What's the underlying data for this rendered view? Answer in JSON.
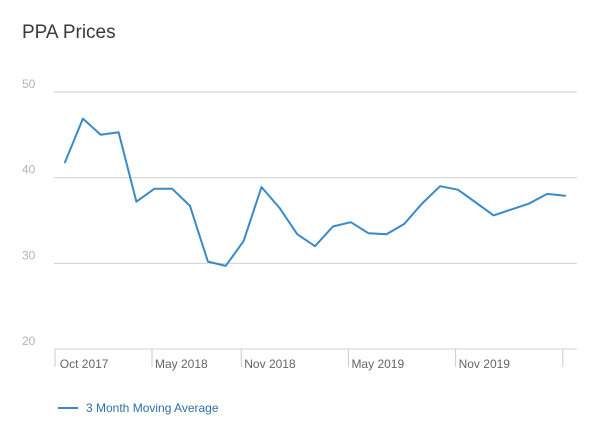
{
  "chart_data": {
    "type": "line",
    "title": "PPA Prices",
    "xlabel": "",
    "ylabel": "",
    "ylim": [
      20,
      50
    ],
    "yticks": [
      20,
      30,
      40,
      50
    ],
    "x_tick_labels": [
      "Oct 2017",
      "May 2018",
      "Nov 2018",
      "May 2019",
      "Nov 2019"
    ],
    "x": [
      "Aug 2017",
      "Sep 2017",
      "Oct 2017",
      "Nov 2017",
      "Dec 2017",
      "Jan 2018",
      "Feb 2018",
      "Mar 2018",
      "Apr 2018",
      "May 2018",
      "Jun 2018",
      "Jul 2018",
      "Aug 2018",
      "Sep 2018",
      "Oct 2018",
      "Nov 2018",
      "Dec 2018",
      "Jan 2019",
      "Feb 2019",
      "Mar 2019",
      "Apr 2019",
      "May 2019",
      "Jun 2019",
      "Jul 2019",
      "Aug 2019",
      "Sep 2019",
      "Oct 2019",
      "Nov 2019",
      "Dec 2019",
      "Jan 2020"
    ],
    "series": [
      {
        "name": "3 Month Moving Average",
        "color": "#3a89c9",
        "values": [
          41.8,
          46.9,
          45.0,
          45.3,
          37.2,
          38.7,
          38.7,
          36.7,
          30.2,
          29.7,
          32.6,
          38.9,
          36.5,
          33.4,
          32.0,
          34.3,
          34.8,
          33.5,
          33.4,
          34.6,
          37.0,
          39.0,
          38.6,
          37.1,
          35.6,
          36.3,
          37.0,
          38.1,
          37.9,
          null
        ]
      }
    ],
    "grid": true,
    "legend": "bottom-left"
  }
}
